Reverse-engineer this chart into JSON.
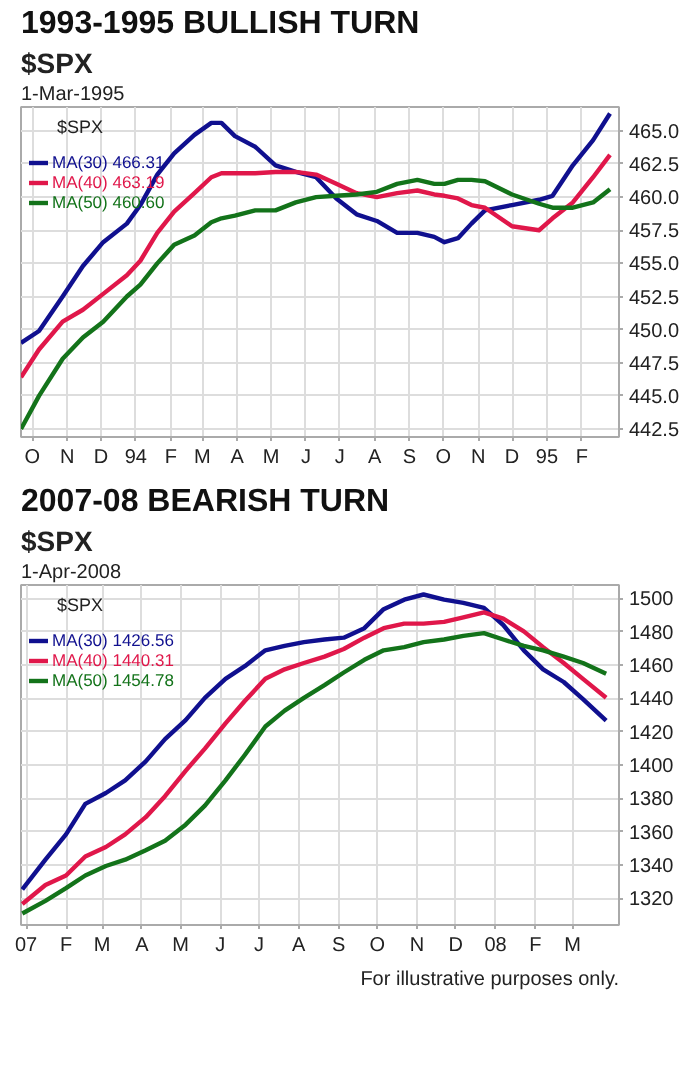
{
  "chart_data": [
    {
      "type": "line",
      "title": "1993-1995 BULLISH TURN",
      "subtitle": "$SPX",
      "annotations": [
        "1-Mar-1995"
      ],
      "legend": "top left",
      "legend_title": "$SPX",
      "grid": true,
      "line_style": "solid",
      "x": [
        "1993-09-21",
        "1993-10-07",
        "1993-10-28",
        "1993-11-15",
        "1993-12-03",
        "1993-12-24",
        "1994-01-05",
        "1994-01-20",
        "1994-02-04",
        "1994-02-22",
        "1994-03-09",
        "1994-03-18",
        "1994-03-30",
        "1994-04-17",
        "1994-05-05",
        "1994-05-23",
        "1994-06-10",
        "1994-06-28",
        "1994-07-16",
        "1994-08-03",
        "1994-08-21",
        "1994-09-08",
        "1994-09-23",
        "1994-10-02",
        "1994-10-14",
        "1994-10-26",
        "1994-11-07",
        "1994-12-01",
        "1994-12-25",
        "1995-01-06",
        "1995-01-24",
        "1995-02-11",
        "1995-02-26"
      ],
      "xlim": [
        "1993-09-21",
        "1995-03-06"
      ],
      "xticks": [
        {
          "value": "1993-10-01",
          "label": "O"
        },
        {
          "value": "1993-11-01",
          "label": "N"
        },
        {
          "value": "1993-12-01",
          "label": "D"
        },
        {
          "value": "1994-01-01",
          "label": "94"
        },
        {
          "value": "1994-02-01",
          "label": "F"
        },
        {
          "value": "1994-03-01",
          "label": "M"
        },
        {
          "value": "1994-04-01",
          "label": "A"
        },
        {
          "value": "1994-05-01",
          "label": "M"
        },
        {
          "value": "1994-06-01",
          "label": "J"
        },
        {
          "value": "1994-07-01",
          "label": "J"
        },
        {
          "value": "1994-08-01",
          "label": "A"
        },
        {
          "value": "1994-09-01",
          "label": "S"
        },
        {
          "value": "1994-10-01",
          "label": "O"
        },
        {
          "value": "1994-11-01",
          "label": "N"
        },
        {
          "value": "1994-12-01",
          "label": "D"
        },
        {
          "value": "1995-01-01",
          "label": "95"
        },
        {
          "value": "1995-02-01",
          "label": "F"
        }
      ],
      "ylim": [
        441.9,
        466.8
      ],
      "yticks": [
        442.5,
        {
          "value": 445,
          "label": "445.0"
        },
        447.5,
        {
          "value": 450,
          "label": "450.0"
        },
        452.5,
        {
          "value": 455,
          "label": "455.0"
        },
        457.5,
        {
          "value": 460,
          "label": "460.0"
        },
        462.5,
        {
          "value": 465,
          "label": "465.0"
        }
      ],
      "series": [
        {
          "name": "MA(30) 466.31",
          "color": "#10108f",
          "values": [
            449.0,
            449.9,
            452.5,
            454.8,
            456.6,
            458.0,
            459.4,
            461.7,
            463.3,
            464.7,
            465.6,
            465.6,
            464.6,
            463.8,
            462.4,
            461.9,
            461.5,
            459.9,
            458.7,
            458.2,
            457.3,
            457.3,
            457.0,
            456.6,
            456.9,
            458.0,
            459.0,
            459.4,
            459.8,
            460.1,
            462.4,
            464.3,
            466.31
          ]
        },
        {
          "name": "MA(40) 463.19",
          "color": "#e0174a",
          "values": [
            446.4,
            448.5,
            450.6,
            451.5,
            452.7,
            454.1,
            455.2,
            457.3,
            458.9,
            460.3,
            461.5,
            461.8,
            461.8,
            461.8,
            461.9,
            461.9,
            461.7,
            461.0,
            460.3,
            460.0,
            460.3,
            460.5,
            460.2,
            460.1,
            459.9,
            459.4,
            459.2,
            457.8,
            457.5,
            458.4,
            459.6,
            461.5,
            463.19
          ]
        },
        {
          "name": "MA(50) 460.60",
          "color": "#13731a",
          "values": [
            442.5,
            445.0,
            447.8,
            449.4,
            450.6,
            452.5,
            453.4,
            455.0,
            456.4,
            457.1,
            458.1,
            458.4,
            458.6,
            459.0,
            459.0,
            459.6,
            460.0,
            460.1,
            460.2,
            460.4,
            461.0,
            461.3,
            461.0,
            461.0,
            461.3,
            461.3,
            461.2,
            460.2,
            459.5,
            459.2,
            459.2,
            459.6,
            460.6
          ]
        }
      ]
    },
    {
      "type": "line",
      "title": "2007-08 BEARISH TURN",
      "subtitle": "$SPX",
      "annotations": [
        "1-Apr-2008",
        "For illustrative purposes only."
      ],
      "legend": "top left",
      "legend_title": "$SPX",
      "grid": true,
      "line_style": "solid",
      "x": [
        "2006-12-29",
        "2007-01-16",
        "2007-02-01",
        "2007-02-16",
        "2007-03-04",
        "2007-03-19",
        "2007-04-04",
        "2007-04-19",
        "2007-05-05",
        "2007-05-20",
        "2007-06-05",
        "2007-06-20",
        "2007-07-06",
        "2007-07-21",
        "2007-08-05",
        "2007-08-21",
        "2007-09-05",
        "2007-09-21",
        "2007-10-06",
        "2007-10-22",
        "2007-11-06",
        "2007-11-22",
        "2007-12-07",
        "2007-12-23",
        "2008-01-07",
        "2008-01-23",
        "2008-02-07",
        "2008-02-23",
        "2008-03-09",
        "2008-03-27"
      ],
      "xlim": [
        "2006-12-28",
        "2008-04-06"
      ],
      "xticks": [
        {
          "value": "2007-01-01",
          "label": "07"
        },
        {
          "value": "2007-02-01",
          "label": "F"
        },
        {
          "value": "2007-03-01",
          "label": "M"
        },
        {
          "value": "2007-04-01",
          "label": "A"
        },
        {
          "value": "2007-05-01",
          "label": "M"
        },
        {
          "value": "2007-06-01",
          "label": "J"
        },
        {
          "value": "2007-07-01",
          "label": "J"
        },
        {
          "value": "2007-08-01",
          "label": "A"
        },
        {
          "value": "2007-09-01",
          "label": "S"
        },
        {
          "value": "2007-10-01",
          "label": "O"
        },
        {
          "value": "2007-11-01",
          "label": "N"
        },
        {
          "value": "2007-12-01",
          "label": "D"
        },
        {
          "value": "2008-01-01",
          "label": "08"
        },
        {
          "value": "2008-02-01",
          "label": "F"
        },
        {
          "value": "2008-03-01",
          "label": "M"
        }
      ],
      "ylim": [
        1304,
        1508
      ],
      "yticks": [
        1320,
        1340,
        1360,
        1380,
        1400,
        1420,
        1440,
        1460,
        1480,
        1500
      ],
      "series": [
        {
          "name": "MA(30) 1426.56",
          "color": "#10108f",
          "values": [
            1325.3,
            1343.2,
            1358.4,
            1376.7,
            1383.2,
            1390.8,
            1402.2,
            1415.5,
            1426.9,
            1440.3,
            1451.7,
            1459.3,
            1468.8,
            1471.5,
            1473.7,
            1475.3,
            1476.4,
            1482.1,
            1493.5,
            1499.2,
            1502.3,
            1499.2,
            1497.3,
            1494.3,
            1484.0,
            1468.8,
            1457.4,
            1449.8,
            1439.5,
            1426.56
          ]
        },
        {
          "name": "MA(40) 1440.31",
          "color": "#e0174a",
          "values": [
            1316.6,
            1328.0,
            1333.7,
            1345.1,
            1350.8,
            1358.4,
            1368.7,
            1381.3,
            1396.5,
            1409.8,
            1425.0,
            1438.4,
            1451.7,
            1457.4,
            1461.2,
            1465.0,
            1469.6,
            1476.4,
            1482.1,
            1484.8,
            1484.8,
            1485.9,
            1488.6,
            1491.6,
            1487.8,
            1480.2,
            1470.7,
            1461.2,
            1451.7,
            1440.31
          ]
        },
        {
          "name": "MA(50) 1454.78",
          "color": "#13731a",
          "values": [
            1310.9,
            1318.5,
            1326.1,
            1333.7,
            1339.4,
            1343.2,
            1348.9,
            1354.6,
            1364.2,
            1375.6,
            1390.8,
            1406.0,
            1423.1,
            1432.6,
            1440.3,
            1447.9,
            1455.5,
            1463.1,
            1468.8,
            1470.7,
            1473.7,
            1475.3,
            1477.5,
            1479.1,
            1475.3,
            1471.5,
            1468.8,
            1465.0,
            1461.2,
            1454.78
          ]
        }
      ]
    }
  ]
}
